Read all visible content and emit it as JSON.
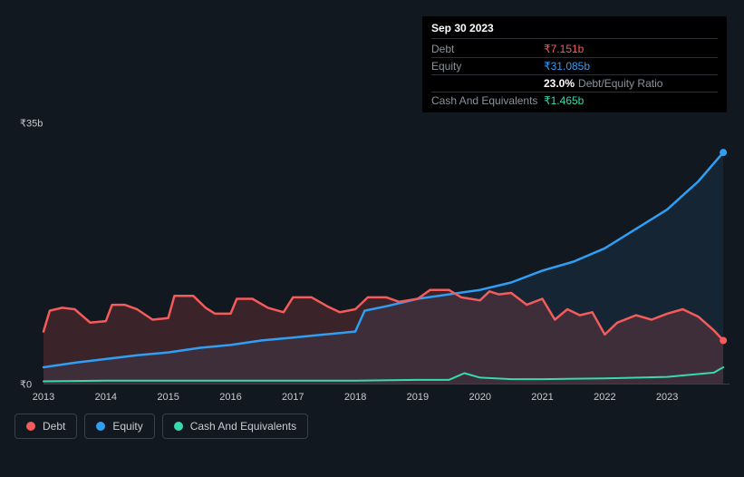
{
  "tooltip": {
    "date": "Sep 30 2023",
    "debt_label": "Debt",
    "debt_value": "₹7.151b",
    "equity_label": "Equity",
    "equity_value": "₹31.085b",
    "ratio_value": "23.0%",
    "ratio_label": "Debt/Equity Ratio",
    "cash_label": "Cash And Equivalents",
    "cash_value": "₹1.465b"
  },
  "chart": {
    "type": "area-line",
    "background_color": "#12181f",
    "grid_color": "#3a4048",
    "text_color": "#c7ccd2",
    "y_axis": {
      "min": 0,
      "max": 35,
      "ticks": [
        {
          "value": 35,
          "label": "₹35b"
        },
        {
          "value": 0,
          "label": "₹0"
        }
      ]
    },
    "x_axis": {
      "min": 2013,
      "max": 2024,
      "tick_labels": [
        "2013",
        "2014",
        "2015",
        "2016",
        "2017",
        "2018",
        "2019",
        "2020",
        "2021",
        "2022",
        "2023"
      ]
    },
    "series": {
      "debt": {
        "color": "#f45b5b",
        "fill_opacity": 0.18,
        "line_width": 2.5,
        "points": [
          [
            2013.0,
            7.0
          ],
          [
            2013.1,
            9.8
          ],
          [
            2013.3,
            10.2
          ],
          [
            2013.5,
            10.0
          ],
          [
            2013.75,
            8.2
          ],
          [
            2014.0,
            8.4
          ],
          [
            2014.1,
            10.6
          ],
          [
            2014.3,
            10.6
          ],
          [
            2014.5,
            10.0
          ],
          [
            2014.75,
            8.6
          ],
          [
            2015.0,
            8.8
          ],
          [
            2015.1,
            11.8
          ],
          [
            2015.4,
            11.8
          ],
          [
            2015.6,
            10.2
          ],
          [
            2015.75,
            9.4
          ],
          [
            2016.0,
            9.4
          ],
          [
            2016.1,
            11.4
          ],
          [
            2016.35,
            11.4
          ],
          [
            2016.6,
            10.2
          ],
          [
            2016.85,
            9.6
          ],
          [
            2017.0,
            11.6
          ],
          [
            2017.3,
            11.6
          ],
          [
            2017.55,
            10.4
          ],
          [
            2017.75,
            9.6
          ],
          [
            2018.0,
            10.0
          ],
          [
            2018.2,
            11.6
          ],
          [
            2018.5,
            11.6
          ],
          [
            2018.7,
            11.0
          ],
          [
            2019.0,
            11.4
          ],
          [
            2019.2,
            12.6
          ],
          [
            2019.5,
            12.6
          ],
          [
            2019.7,
            11.6
          ],
          [
            2020.0,
            11.2
          ],
          [
            2020.15,
            12.4
          ],
          [
            2020.3,
            12.0
          ],
          [
            2020.5,
            12.2
          ],
          [
            2020.75,
            10.6
          ],
          [
            2021.0,
            11.4
          ],
          [
            2021.2,
            8.6
          ],
          [
            2021.4,
            10.0
          ],
          [
            2021.6,
            9.2
          ],
          [
            2021.8,
            9.6
          ],
          [
            2022.0,
            6.6
          ],
          [
            2022.2,
            8.2
          ],
          [
            2022.5,
            9.2
          ],
          [
            2022.75,
            8.6
          ],
          [
            2023.0,
            9.4
          ],
          [
            2023.25,
            10.0
          ],
          [
            2023.5,
            9.0
          ],
          [
            2023.75,
            7.15
          ],
          [
            2023.9,
            5.8
          ]
        ]
      },
      "equity": {
        "color": "#2f9ef3",
        "fill_opacity": 0.1,
        "line_width": 2.5,
        "points": [
          [
            2013.0,
            2.2
          ],
          [
            2013.5,
            2.8
          ],
          [
            2014.0,
            3.3
          ],
          [
            2014.5,
            3.8
          ],
          [
            2015.0,
            4.2
          ],
          [
            2015.5,
            4.8
          ],
          [
            2016.0,
            5.2
          ],
          [
            2016.5,
            5.8
          ],
          [
            2017.0,
            6.2
          ],
          [
            2017.5,
            6.6
          ],
          [
            2018.0,
            7.0
          ],
          [
            2018.15,
            9.8
          ],
          [
            2018.5,
            10.4
          ],
          [
            2019.0,
            11.4
          ],
          [
            2019.5,
            12.0
          ],
          [
            2020.0,
            12.6
          ],
          [
            2020.5,
            13.6
          ],
          [
            2021.0,
            15.2
          ],
          [
            2021.5,
            16.4
          ],
          [
            2022.0,
            18.2
          ],
          [
            2022.5,
            20.8
          ],
          [
            2023.0,
            23.4
          ],
          [
            2023.5,
            27.2
          ],
          [
            2023.9,
            31.08
          ]
        ]
      },
      "cash": {
        "color": "#36d9b0",
        "fill_opacity": 0.0,
        "line_width": 2,
        "points": [
          [
            2013.0,
            0.3
          ],
          [
            2014.0,
            0.4
          ],
          [
            2015.0,
            0.4
          ],
          [
            2016.0,
            0.4
          ],
          [
            2017.0,
            0.4
          ],
          [
            2018.0,
            0.4
          ],
          [
            2019.0,
            0.5
          ],
          [
            2019.5,
            0.5
          ],
          [
            2019.75,
            1.4
          ],
          [
            2020.0,
            0.8
          ],
          [
            2020.5,
            0.6
          ],
          [
            2021.0,
            0.6
          ],
          [
            2022.0,
            0.7
          ],
          [
            2023.0,
            0.9
          ],
          [
            2023.75,
            1.47
          ],
          [
            2023.9,
            2.2
          ]
        ]
      }
    },
    "legend": [
      {
        "key": "debt",
        "label": "Debt",
        "color": "#f45b5b"
      },
      {
        "key": "equity",
        "label": "Equity",
        "color": "#2f9ef3"
      },
      {
        "key": "cash",
        "label": "Cash And Equivalents",
        "color": "#36d9b0"
      }
    ]
  }
}
